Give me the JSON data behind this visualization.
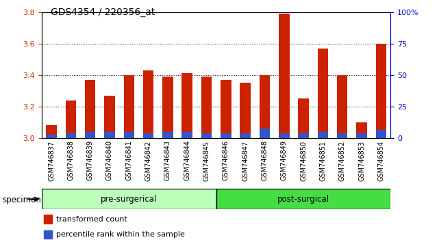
{
  "title": "GDS4354 / 220356_at",
  "samples": [
    "GSM746837",
    "GSM746838",
    "GSM746839",
    "GSM746840",
    "GSM746841",
    "GSM746842",
    "GSM746843",
    "GSM746844",
    "GSM746845",
    "GSM746846",
    "GSM746847",
    "GSM746848",
    "GSM746849",
    "GSM746850",
    "GSM746851",
    "GSM746852",
    "GSM746853",
    "GSM746854"
  ],
  "red_values": [
    3.08,
    3.24,
    3.37,
    3.27,
    3.4,
    3.43,
    3.39,
    3.41,
    3.39,
    3.37,
    3.35,
    3.4,
    3.79,
    3.25,
    3.57,
    3.4,
    3.1,
    3.6
  ],
  "blue_values": [
    0.02,
    0.03,
    0.04,
    0.04,
    0.04,
    0.03,
    0.04,
    0.04,
    0.03,
    0.03,
    0.03,
    0.06,
    0.03,
    0.03,
    0.04,
    0.03,
    0.03,
    0.05
  ],
  "pre_surgical_count": 9,
  "post_surgical_count": 9,
  "ylim_left": [
    3.0,
    3.8
  ],
  "ylim_right": [
    0,
    100
  ],
  "yticks_left": [
    3.0,
    3.2,
    3.4,
    3.6,
    3.8
  ],
  "yticks_right": [
    0,
    25,
    50,
    75,
    100
  ],
  "yticklabels_right": [
    "0",
    "25",
    "50",
    "75",
    "100%"
  ],
  "bar_color_red": "#cc2200",
  "bar_color_blue": "#3355cc",
  "pre_color": "#bbffbb",
  "post_color": "#44dd44",
  "pre_label": "pre-surgerical",
  "post_label": "post-surgical",
  "specimen_label": "specimen",
  "legend_red": "transformed count",
  "legend_blue": "percentile rank within the sample",
  "background_plot": "#ffffff",
  "tick_label_color_left": "#cc2200",
  "tick_label_color_right": "#0000cc",
  "grid_color": "#000000",
  "bar_width": 0.55,
  "base_value": 3.0,
  "xtick_bg": "#cccccc"
}
